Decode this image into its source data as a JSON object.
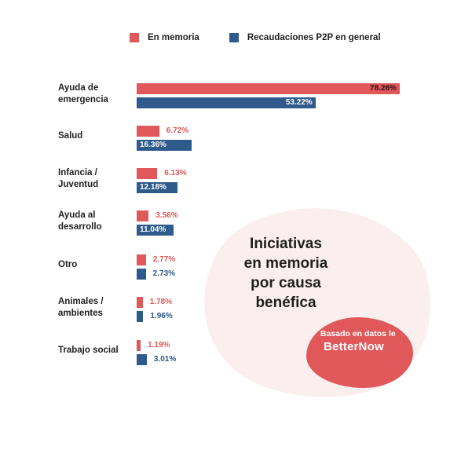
{
  "legend": {
    "series1": "En memoria",
    "series2": "Recaudaciones P2P en general"
  },
  "colors": {
    "series1": "#e0585a",
    "series2": "#2f5a8c",
    "blob": "#fbeeee",
    "badge": "#e0585a"
  },
  "title": {
    "line1": "Iniciativas",
    "line2": "en memoria",
    "line3": "por causa",
    "line4": "benéfica"
  },
  "badge": {
    "text": "Basado en datos le",
    "logo": "BetterNow"
  },
  "chart_data": {
    "type": "bar",
    "orientation": "horizontal",
    "categories": [
      [
        "Ayuda de",
        "emergencia"
      ],
      [
        "Salud"
      ],
      [
        "Infancia /",
        "Juventud"
      ],
      [
        "Ayuda al",
        "desarrollo"
      ],
      [
        "Otro"
      ],
      [
        "Animales /",
        "ambientes"
      ],
      [
        "Trabajo social"
      ]
    ],
    "series": [
      {
        "name": "En memoria",
        "values": [
          78.26,
          6.72,
          6.13,
          3.56,
          2.77,
          1.78,
          1.19
        ]
      },
      {
        "name": "Recaudaciones P2P en general",
        "values": [
          53.22,
          16.36,
          12.18,
          11.04,
          2.73,
          1.96,
          3.01
        ]
      }
    ],
    "value_suffix": "%",
    "xlim": [
      0,
      100
    ],
    "legend_position": "top",
    "grid": false
  }
}
